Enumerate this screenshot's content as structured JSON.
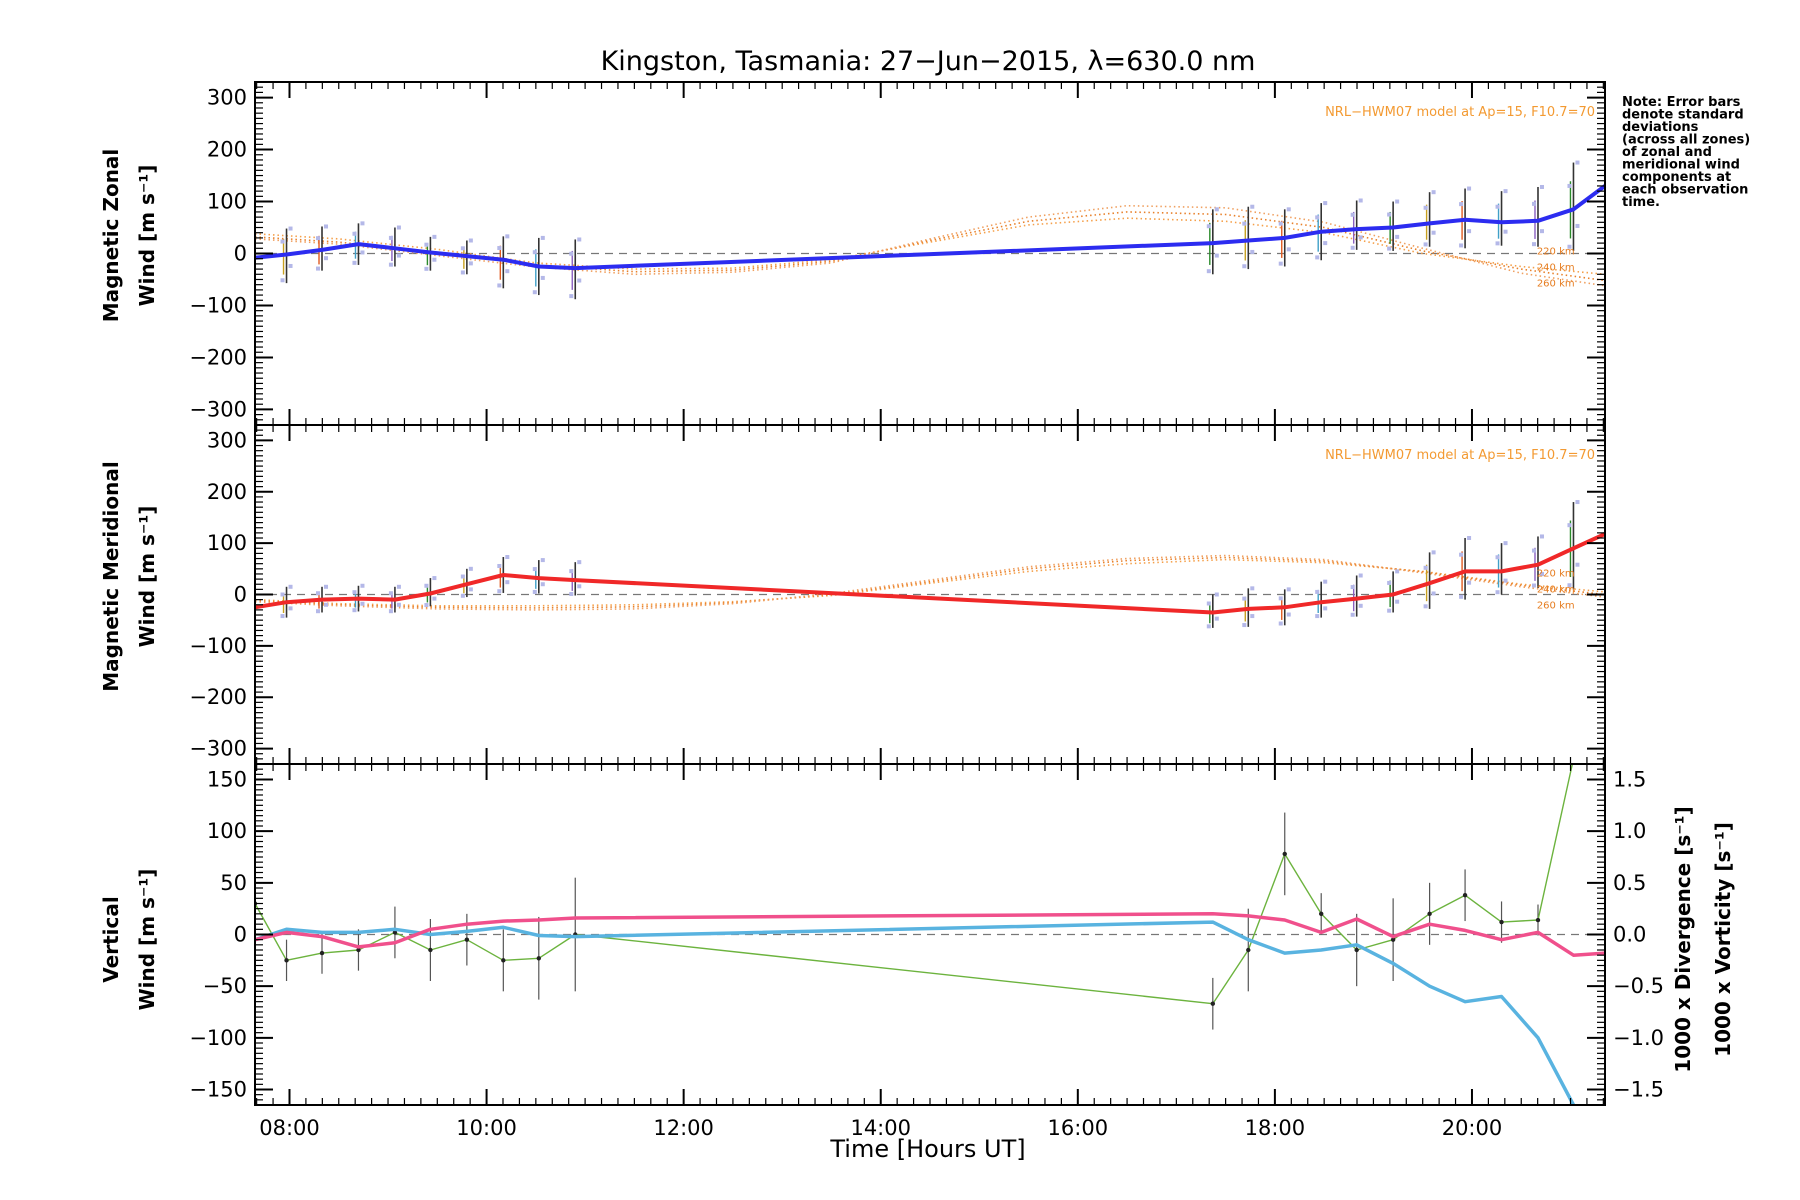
{
  "figure": {
    "title": "Kingston, Tasmania: 27−Jun−2015, λ=630.0 nm",
    "xlabel": "Time [Hours UT]",
    "note_lines": [
      "Note: Error bars",
      "denote standard",
      "deviations",
      "(across all zones)",
      "of zonal and",
      "meridional wind",
      "components at",
      "each observation",
      "time."
    ]
  },
  "chart_data": [
    {
      "type": "line",
      "panel": "zonal",
      "ylabel": [
        "Magnetic Zonal",
        "Wind [m s⁻¹]"
      ],
      "xlim": [
        7.65,
        21.35
      ],
      "ylim": [
        -330,
        330
      ],
      "y_ticks": [
        300,
        200,
        100,
        0,
        -100,
        -200,
        -300
      ],
      "y_tick_labels": [
        "300",
        "200",
        "100",
        "0",
        "−100",
        "−200",
        "−300"
      ],
      "x_ticks": [
        8,
        10,
        12,
        14,
        16,
        18,
        20
      ],
      "x_tick_labels": [
        "08:00",
        "10:00",
        "12:00",
        "14:00",
        "16:00",
        "18:00",
        "20:00"
      ],
      "model_label": "NRL−HWM07 model at Ap=15, F10.7=70",
      "altitude_labels": [
        "220 km",
        "240 km",
        "260 km"
      ],
      "series": [
        {
          "color": "#2c2cf0",
          "x": [
            7.65,
            7.97,
            8.33,
            8.7,
            9.07,
            9.43,
            9.8,
            10.17,
            10.53,
            10.9,
            17.37,
            17.73,
            18.1,
            18.47,
            18.83,
            19.2,
            19.57,
            19.93,
            20.3,
            20.67,
            21.03,
            21.35
          ],
          "y": [
            -8,
            -2,
            7,
            18,
            10,
            2,
            -5,
            -12,
            -25,
            -28,
            20,
            25,
            30,
            42,
            47,
            50,
            58,
            65,
            60,
            63,
            85,
            130
          ],
          "err_lo": [
            null,
            55,
            40,
            40,
            35,
            35,
            35,
            55,
            55,
            60,
            60,
            55,
            55,
            55,
            40,
            45,
            45,
            55,
            45,
            50,
            80,
            null
          ],
          "err_hi": [
            null,
            50,
            45,
            40,
            40,
            30,
            30,
            45,
            55,
            55,
            65,
            65,
            55,
            55,
            55,
            50,
            60,
            60,
            60,
            65,
            90,
            null
          ]
        }
      ],
      "model_series": [
        {
          "name": "220 km",
          "x": [
            7.65,
            8.5,
            9.5,
            10.5,
            11.5,
            12.5,
            13.5,
            14.5,
            15.5,
            16.5,
            17.5,
            18.5,
            19.5,
            20.5,
            21.35
          ],
          "y": [
            38,
            28,
            8,
            -18,
            -30,
            -28,
            -12,
            22,
            55,
            68,
            62,
            40,
            0,
            -25,
            -40
          ]
        },
        {
          "name": "240 km",
          "x": [
            7.65,
            8.5,
            9.5,
            10.5,
            11.5,
            12.5,
            13.5,
            14.5,
            15.5,
            16.5,
            17.5,
            18.5,
            19.5,
            20.5,
            21.35
          ],
          "y": [
            32,
            22,
            2,
            -22,
            -35,
            -32,
            -15,
            25,
            62,
            80,
            75,
            50,
            5,
            -30,
            -52
          ]
        },
        {
          "name": "260 km",
          "x": [
            7.65,
            8.5,
            9.5,
            10.5,
            11.5,
            12.5,
            13.5,
            14.5,
            15.5,
            16.5,
            17.5,
            18.5,
            19.5,
            20.5,
            21.35
          ],
          "y": [
            28,
            18,
            -4,
            -26,
            -40,
            -36,
            -18,
            28,
            70,
            92,
            88,
            60,
            10,
            -38,
            -62
          ]
        }
      ]
    },
    {
      "type": "line",
      "panel": "meridional",
      "ylabel": [
        "Magnetic Meridional",
        "Wind [m s⁻¹]"
      ],
      "xlim": [
        7.65,
        21.35
      ],
      "ylim": [
        -330,
        330
      ],
      "y_ticks": [
        300,
        200,
        100,
        0,
        -100,
        -200,
        -300
      ],
      "y_tick_labels": [
        "300",
        "200",
        "100",
        "0",
        "−100",
        "−200",
        "−300"
      ],
      "model_label": "NRL−HWM07 model at Ap=15, F10.7=70",
      "altitude_labels": [
        "220 km",
        "240 km",
        "260 km"
      ],
      "series": [
        {
          "color": "#f02828",
          "x": [
            7.65,
            7.97,
            8.33,
            8.7,
            9.07,
            9.43,
            9.8,
            10.17,
            10.53,
            10.9,
            17.37,
            17.73,
            18.1,
            18.47,
            18.83,
            19.2,
            19.57,
            19.93,
            20.3,
            20.67,
            21.03,
            21.35
          ],
          "y": [
            -25,
            -15,
            -10,
            -8,
            -10,
            2,
            20,
            38,
            32,
            28,
            -35,
            -28,
            -25,
            -15,
            -8,
            0,
            22,
            45,
            45,
            58,
            90,
            118
          ],
          "err_lo": [
            null,
            30,
            25,
            25,
            25,
            25,
            25,
            35,
            30,
            30,
            30,
            35,
            35,
            30,
            35,
            35,
            50,
            55,
            45,
            45,
            80,
            null
          ],
          "err_hi": [
            null,
            30,
            25,
            25,
            25,
            30,
            30,
            35,
            35,
            35,
            35,
            40,
            35,
            40,
            45,
            45,
            60,
            65,
            55,
            55,
            90,
            null
          ]
        }
      ],
      "model_series": [
        {
          "name": "220 km",
          "x": [
            7.65,
            8.5,
            9.5,
            10.5,
            11.5,
            12.5,
            13.5,
            14.5,
            15.5,
            16.5,
            17.5,
            18.5,
            19.5,
            20.5,
            21.35
          ],
          "y": [
            -10,
            -18,
            -22,
            -22,
            -20,
            -14,
            -2,
            22,
            45,
            60,
            68,
            62,
            45,
            20,
            5
          ]
        },
        {
          "name": "240 km",
          "x": [
            7.65,
            8.5,
            9.5,
            10.5,
            11.5,
            12.5,
            13.5,
            14.5,
            15.5,
            16.5,
            17.5,
            18.5,
            19.5,
            20.5,
            21.35
          ],
          "y": [
            -12,
            -20,
            -25,
            -26,
            -24,
            -16,
            0,
            25,
            50,
            66,
            72,
            65,
            44,
            18,
            0
          ]
        },
        {
          "name": "260 km",
          "x": [
            7.65,
            8.5,
            9.5,
            10.5,
            11.5,
            12.5,
            13.5,
            14.5,
            15.5,
            16.5,
            17.5,
            18.5,
            19.5,
            20.5,
            21.35
          ],
          "y": [
            -14,
            -22,
            -28,
            -30,
            -28,
            -18,
            2,
            28,
            54,
            70,
            76,
            68,
            42,
            15,
            -5
          ]
        }
      ]
    },
    {
      "type": "line",
      "panel": "vertical",
      "ylabel": [
        "Vertical",
        "Wind [m s⁻¹]"
      ],
      "ylabel_color": "#6cb33e",
      "ylim": [
        -165,
        165
      ],
      "y_ticks": [
        150,
        100,
        50,
        0,
        -50,
        -100,
        -150
      ],
      "y_tick_labels": [
        "150",
        "100",
        "50",
        "0",
        "−50",
        "−100",
        "−150"
      ],
      "y2lim": [
        -1.65,
        1.65
      ],
      "y2_ticks": [
        1.5,
        1.0,
        0.5,
        0.0,
        -0.5,
        -1.0,
        -1.5
      ],
      "y2_tick_labels": [
        "1.5",
        "1.0",
        "0.5",
        "0.0",
        "−0.5",
        "−1.0",
        "−1.5"
      ],
      "y2labels": [
        {
          "text": "1000 x Divergence [s⁻¹]",
          "color": "#59b3e0"
        },
        {
          "text": "1000 x Vorticity [s⁻¹]",
          "color": "#f0508c"
        }
      ],
      "series": [
        {
          "name": "Vertical Wind",
          "axis": "left",
          "color": "#6cb33e",
          "x": [
            7.65,
            7.97,
            8.33,
            8.7,
            9.07,
            9.43,
            9.8,
            10.17,
            10.53,
            10.9,
            17.37,
            17.73,
            18.1,
            18.47,
            18.83,
            19.2,
            19.57,
            19.93,
            20.3,
            20.67,
            21.03
          ],
          "y": [
            30,
            -25,
            -18,
            -15,
            2,
            -15,
            -5,
            -25,
            -23,
            0,
            -67,
            -15,
            78,
            20,
            -15,
            -5,
            20,
            38,
            12,
            14,
            170
          ],
          "err": [
            null,
            20,
            20,
            20,
            25,
            30,
            25,
            30,
            40,
            55,
            25,
            40,
            40,
            20,
            35,
            40,
            30,
            25,
            20,
            15,
            null
          ]
        },
        {
          "name": "1000 x Divergence",
          "axis": "right",
          "color": "#59b3e0",
          "x": [
            7.65,
            7.97,
            8.33,
            8.7,
            9.07,
            9.43,
            9.8,
            10.17,
            10.53,
            10.9,
            17.37,
            17.73,
            18.1,
            18.47,
            18.83,
            19.2,
            19.57,
            19.93,
            20.3,
            20.67,
            21.03
          ],
          "y": [
            -0.05,
            0.05,
            0.02,
            0.02,
            0.05,
            0.0,
            0.03,
            0.07,
            -0.01,
            -0.02,
            0.12,
            -0.05,
            -0.18,
            -0.15,
            -0.1,
            -0.28,
            -0.5,
            -0.65,
            -0.6,
            -1.0,
            -1.65
          ]
        },
        {
          "name": "1000 x Vorticity",
          "axis": "right",
          "color": "#f0508c",
          "x": [
            7.65,
            7.97,
            8.33,
            8.7,
            9.07,
            9.43,
            9.8,
            10.17,
            10.53,
            10.9,
            17.37,
            17.73,
            18.1,
            18.47,
            18.83,
            19.2,
            19.57,
            19.93,
            20.3,
            20.67,
            21.03,
            21.35
          ],
          "y": [
            -0.05,
            0.02,
            -0.02,
            -0.12,
            -0.08,
            0.05,
            0.1,
            0.13,
            0.14,
            0.16,
            0.2,
            0.18,
            0.14,
            0.02,
            0.15,
            -0.02,
            0.1,
            0.04,
            -0.05,
            0.02,
            -0.2,
            -0.18
          ]
        }
      ]
    }
  ]
}
